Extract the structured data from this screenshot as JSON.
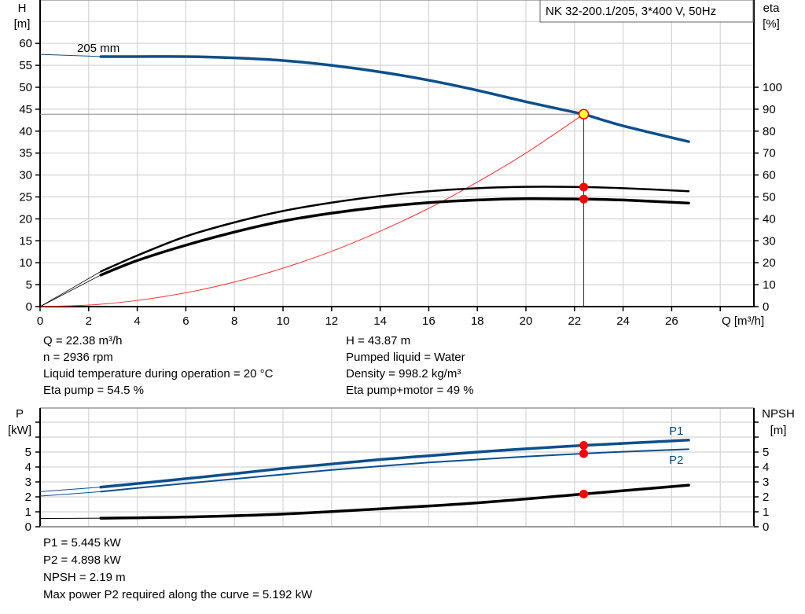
{
  "title_box": "NK 32-200.1/205, 3*400 V, 50Hz",
  "colors": {
    "pump_curve": "#0b4f8c",
    "efficiency": "#000000",
    "system_curve": "#ff3030",
    "duty_point": "#ff0000",
    "duty_point_fill": "#ffff33",
    "grid": "#d4d4d4"
  },
  "chart_data": [
    {
      "type": "line",
      "xlabel": "Q [m³/h]",
      "ylabel_left": {
        "name": "H",
        "unit": "[m]"
      },
      "ylabel_right": {
        "name": "eta",
        "unit": "[%]"
      },
      "xlim": [
        0,
        29.5
      ],
      "ylim_left": [
        0,
        70
      ],
      "ylim_right": [
        0,
        140
      ],
      "x_ticks": [
        "0",
        "2",
        "4",
        "6",
        "8",
        "10",
        "12",
        "14",
        "16",
        "18",
        "20",
        "22",
        "24",
        "26"
      ],
      "y_ticks_left": [
        "0",
        "5",
        "10",
        "15",
        "20",
        "25",
        "30",
        "35",
        "40",
        "45",
        "50",
        "55",
        "60"
      ],
      "y_ticks_right": [
        "0",
        "10",
        "20",
        "30",
        "40",
        "50",
        "60",
        "70",
        "80",
        "90",
        "100"
      ],
      "grid": true,
      "curve_label": "205 mm",
      "series": [
        {
          "id": "head",
          "axis": "left",
          "x": [
            0,
            2.5,
            4,
            6,
            8,
            10,
            12,
            14,
            16,
            18,
            20,
            22,
            22.38,
            24,
            26.7
          ],
          "y": [
            57.5,
            57,
            57,
            57,
            56.7,
            56.1,
            55,
            53.5,
            51.6,
            49.3,
            46.7,
            44.3,
            43.87,
            41.2,
            37.6
          ]
        },
        {
          "id": "eta_pump",
          "axis": "right",
          "x": [
            0,
            2.5,
            4,
            6,
            8,
            10,
            12,
            14,
            16,
            18,
            20,
            22.38,
            24,
            26.7
          ],
          "y": [
            0,
            16,
            23.3,
            32,
            38.4,
            43.6,
            47.4,
            50.4,
            52.6,
            54,
            54.6,
            54.5,
            54,
            52.6
          ]
        },
        {
          "id": "eta_pump_motor",
          "axis": "right",
          "x": [
            0,
            2.5,
            4,
            6,
            8,
            10,
            12,
            14,
            16,
            18,
            20,
            22.38,
            24,
            26.7
          ],
          "y": [
            0,
            14.4,
            21,
            28,
            34,
            39,
            42.6,
            45.4,
            47.4,
            48.6,
            49.2,
            49,
            48.6,
            47.2
          ]
        },
        {
          "id": "system",
          "axis": "left",
          "x": [
            0,
            2,
            4,
            6,
            8,
            10,
            12,
            14,
            16,
            18,
            20,
            22.38
          ],
          "y": [
            0,
            0.35,
            1.4,
            3.15,
            5.6,
            8.76,
            12.6,
            17.2,
            22.4,
            28.4,
            35,
            43.87
          ]
        }
      ],
      "duty_point": {
        "Q": 22.38,
        "H": 43.87,
        "eta_pump": 54.5,
        "eta_pump_motor": 49
      }
    },
    {
      "type": "line",
      "ylabel_left": {
        "name": "P",
        "unit": "[kW]"
      },
      "ylabel_right": {
        "name": "NPSH",
        "unit": "[m]"
      },
      "xlim": [
        0,
        29.5
      ],
      "ylim": [
        0,
        8
      ],
      "y_ticks": [
        "0",
        "1",
        "2",
        "3",
        "4",
        "5"
      ],
      "grid": true,
      "series": [
        {
          "name": "P1",
          "x": [
            0,
            2.5,
            5,
            8,
            10,
            12,
            14,
            16,
            18,
            20,
            22.38,
            24,
            26.7
          ],
          "y": [
            2.35,
            2.65,
            3.05,
            3.55,
            3.9,
            4.2,
            4.5,
            4.75,
            5.0,
            5.22,
            5.445,
            5.58,
            5.8
          ]
        },
        {
          "name": "P2",
          "x": [
            0,
            2.5,
            5,
            8,
            10,
            12,
            14,
            16,
            18,
            20,
            22.38,
            24,
            26.7
          ],
          "y": [
            2.05,
            2.35,
            2.75,
            3.2,
            3.5,
            3.8,
            4.05,
            4.3,
            4.5,
            4.7,
            4.898,
            5.02,
            5.19
          ]
        },
        {
          "id": "npsh",
          "x": [
            0,
            2.5,
            6,
            10,
            14,
            18,
            22.38,
            26.7
          ],
          "y": [
            0.55,
            0.57,
            0.65,
            0.85,
            1.2,
            1.6,
            2.19,
            2.78
          ]
        }
      ],
      "duty_point": {
        "Q": 22.38,
        "P1": 5.445,
        "P2": 4.898,
        "NPSH": 2.19
      }
    }
  ],
  "info_top": {
    "left": [
      "Q = 22.38 m³/h",
      "n = 2936 rpm",
      "Liquid temperature during operation = 20 °C",
      "Eta pump = 54.5 %"
    ],
    "right": [
      "H = 43.87 m",
      "Pumped liquid = Water",
      "Density = 998.2 kg/m³",
      "Eta pump+motor = 49 %"
    ]
  },
  "info_bottom": [
    "P1 = 5.445 kW",
    "P2 = 4.898 kW",
    "NPSH = 2.19 m",
    "Max power P2 required along the curve = 5.192 kW"
  ]
}
